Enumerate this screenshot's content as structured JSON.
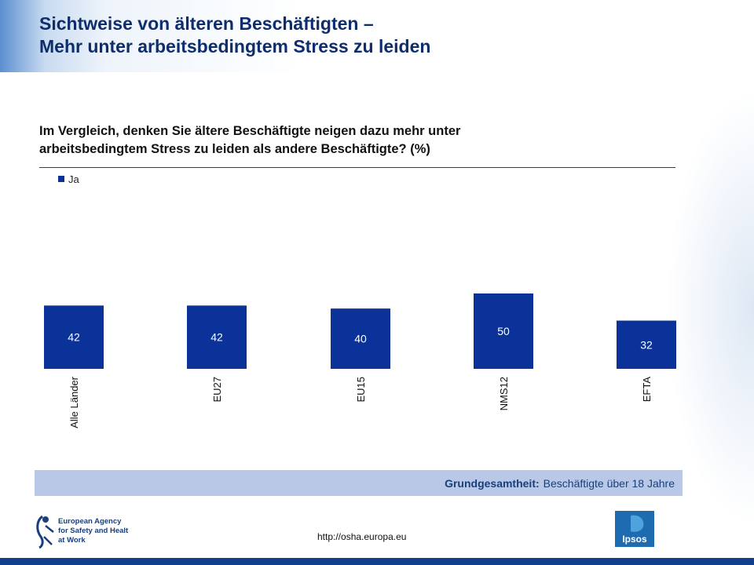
{
  "header": {
    "title_line1": "Sichtweise von älteren Beschäftigten –",
    "title_line2": "Mehr unter arbeitsbedingtem Stress zu leiden"
  },
  "question": {
    "line1": "Im Vergleich, denken Sie ältere Beschäftigte neigen dazu mehr unter",
    "line2": "arbeitsbedingtem Stress zu leiden  als andere Beschäftigte?  (%)"
  },
  "chart_data": {
    "type": "bar",
    "categories": [
      "Alle Länder",
      "EU27",
      "EU15",
      "NMS12",
      "EFTA"
    ],
    "series": [
      {
        "name": "Ja",
        "values": [
          42,
          42,
          40,
          50,
          32
        ],
        "color": "#0a3299"
      }
    ],
    "ylim": [
      0,
      100
    ],
    "grid": false,
    "legend_position": "top-left",
    "title": "",
    "xlabel": "",
    "ylabel": ""
  },
  "source": {
    "label": "Grundgesamtheit:",
    "text": "Beschäftigte über 18 Jahre"
  },
  "footer": {
    "url": "http://osha.europa.eu",
    "logo_left_lines": [
      "European Agency",
      "for Safety and Health",
      "at Work"
    ],
    "logo_right": "Ipsos"
  },
  "colors": {
    "title": "#0d2d6c",
    "bar": "#0a3299",
    "source_bar": "#b9c8e6",
    "bottom_bar": "#0f3f8f"
  }
}
